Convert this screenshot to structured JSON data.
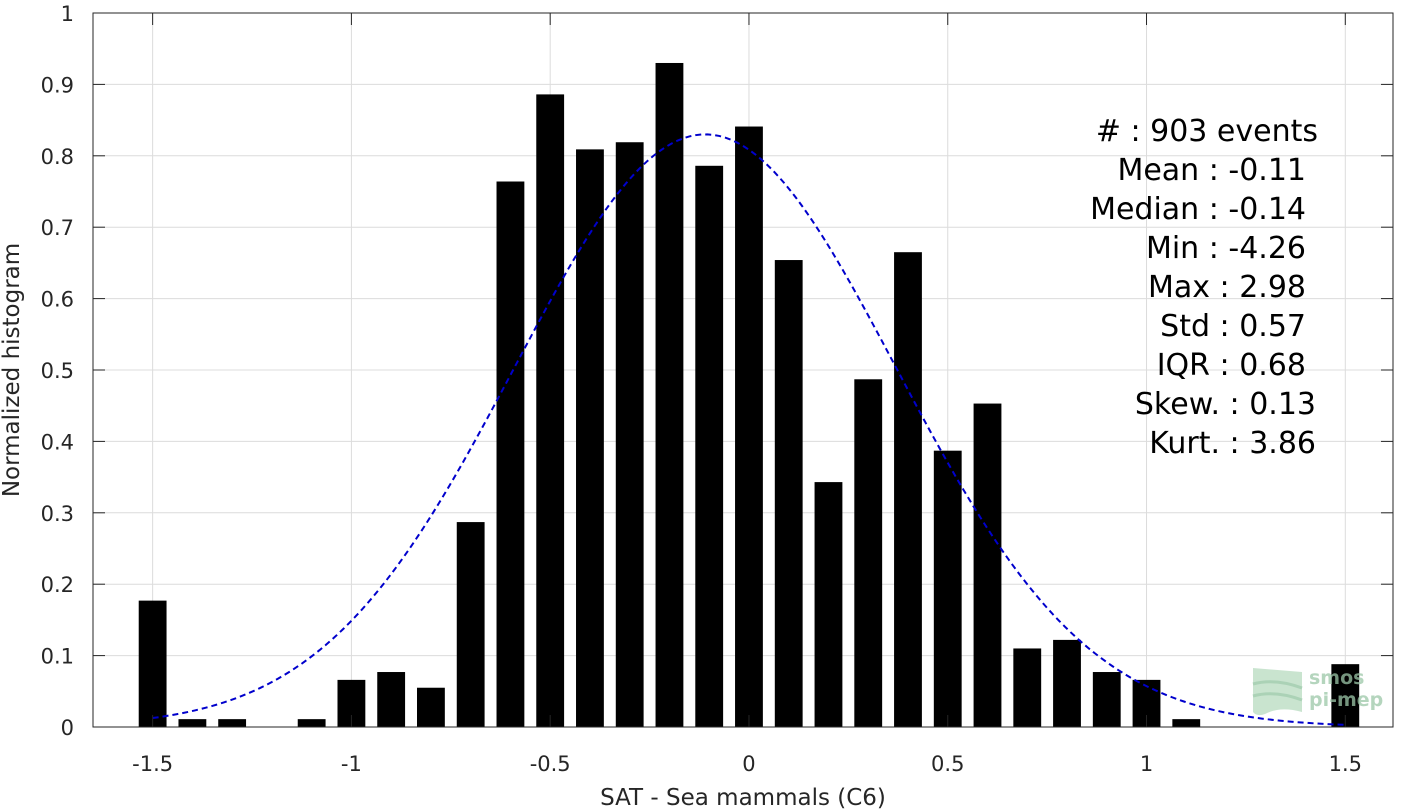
{
  "chart_data": {
    "type": "bar",
    "xlabel": "SAT - Sea mammals (C6)",
    "ylabel": "Normalized histogram",
    "xlim": [
      -1.65,
      1.62
    ],
    "ylim": [
      0,
      1
    ],
    "grid": true,
    "x_ticks": [
      -1.5,
      -1,
      -0.5,
      0,
      0.5,
      1,
      1.5
    ],
    "x_tick_labels": [
      "-1.5",
      "-1",
      "-0.5",
      "0",
      "0.5",
      "1",
      "1.5"
    ],
    "y_ticks": [
      0,
      0.1,
      0.2,
      0.3,
      0.4,
      0.5,
      0.6,
      0.7,
      0.8,
      0.9,
      1
    ],
    "y_tick_labels": [
      "0",
      "0.1",
      "0.2",
      "0.3",
      "0.4",
      "0.5",
      "0.6",
      "0.7",
      "0.8",
      "0.9",
      "1"
    ],
    "bar_width": 0.07,
    "bar_color": "#000000",
    "bars": [
      {
        "x": -1.5,
        "value": 0.177
      },
      {
        "x": -1.4,
        "value": 0.011
      },
      {
        "x": -1.3,
        "value": 0.011
      },
      {
        "x": -1.1,
        "value": 0.011
      },
      {
        "x": -1.0,
        "value": 0.066
      },
      {
        "x": -0.9,
        "value": 0.077
      },
      {
        "x": -0.8,
        "value": 0.055
      },
      {
        "x": -0.7,
        "value": 0.287
      },
      {
        "x": -0.6,
        "value": 0.764
      },
      {
        "x": -0.5,
        "value": 0.886
      },
      {
        "x": -0.4,
        "value": 0.809
      },
      {
        "x": -0.3,
        "value": 0.819
      },
      {
        "x": -0.2,
        "value": 0.93
      },
      {
        "x": -0.1,
        "value": 0.786
      },
      {
        "x": 0.0,
        "value": 0.841
      },
      {
        "x": 0.1,
        "value": 0.654
      },
      {
        "x": 0.2,
        "value": 0.343
      },
      {
        "x": 0.3,
        "value": 0.487
      },
      {
        "x": 0.4,
        "value": 0.665
      },
      {
        "x": 0.5,
        "value": 0.387
      },
      {
        "x": 0.6,
        "value": 0.453
      },
      {
        "x": 0.7,
        "value": 0.11
      },
      {
        "x": 0.8,
        "value": 0.122
      },
      {
        "x": 0.9,
        "value": 0.077
      },
      {
        "x": 1.0,
        "value": 0.066
      },
      {
        "x": 1.1,
        "value": 0.011
      },
      {
        "x": 1.5,
        "value": 0.088
      }
    ],
    "gaussian_fit": {
      "mean": -0.11,
      "std": 0.48,
      "peak": 0.83,
      "x_range": [
        -1.5,
        1.5
      ],
      "color": "#0000cc",
      "style": "dashed"
    },
    "stats": [
      {
        "key": "#  : 903 events",
        "text": "#  : 903 events"
      },
      {
        "key": "mean",
        "text": "Mean : -0.11"
      },
      {
        "key": "median",
        "text": "Median : -0.14"
      },
      {
        "key": "min",
        "text": "Min : -4.26"
      },
      {
        "key": "max",
        "text": "Max : 2.98"
      },
      {
        "key": "std",
        "text": "Std : 0.57"
      },
      {
        "key": "iqr",
        "text": "IQR : 0.68"
      },
      {
        "key": "skew",
        "text": "Skew. : 0.13"
      },
      {
        "key": "kurt",
        "text": "Kurt. : 3.86"
      }
    ],
    "logo": {
      "line1": "smos",
      "line2": "pi-mep"
    }
  }
}
